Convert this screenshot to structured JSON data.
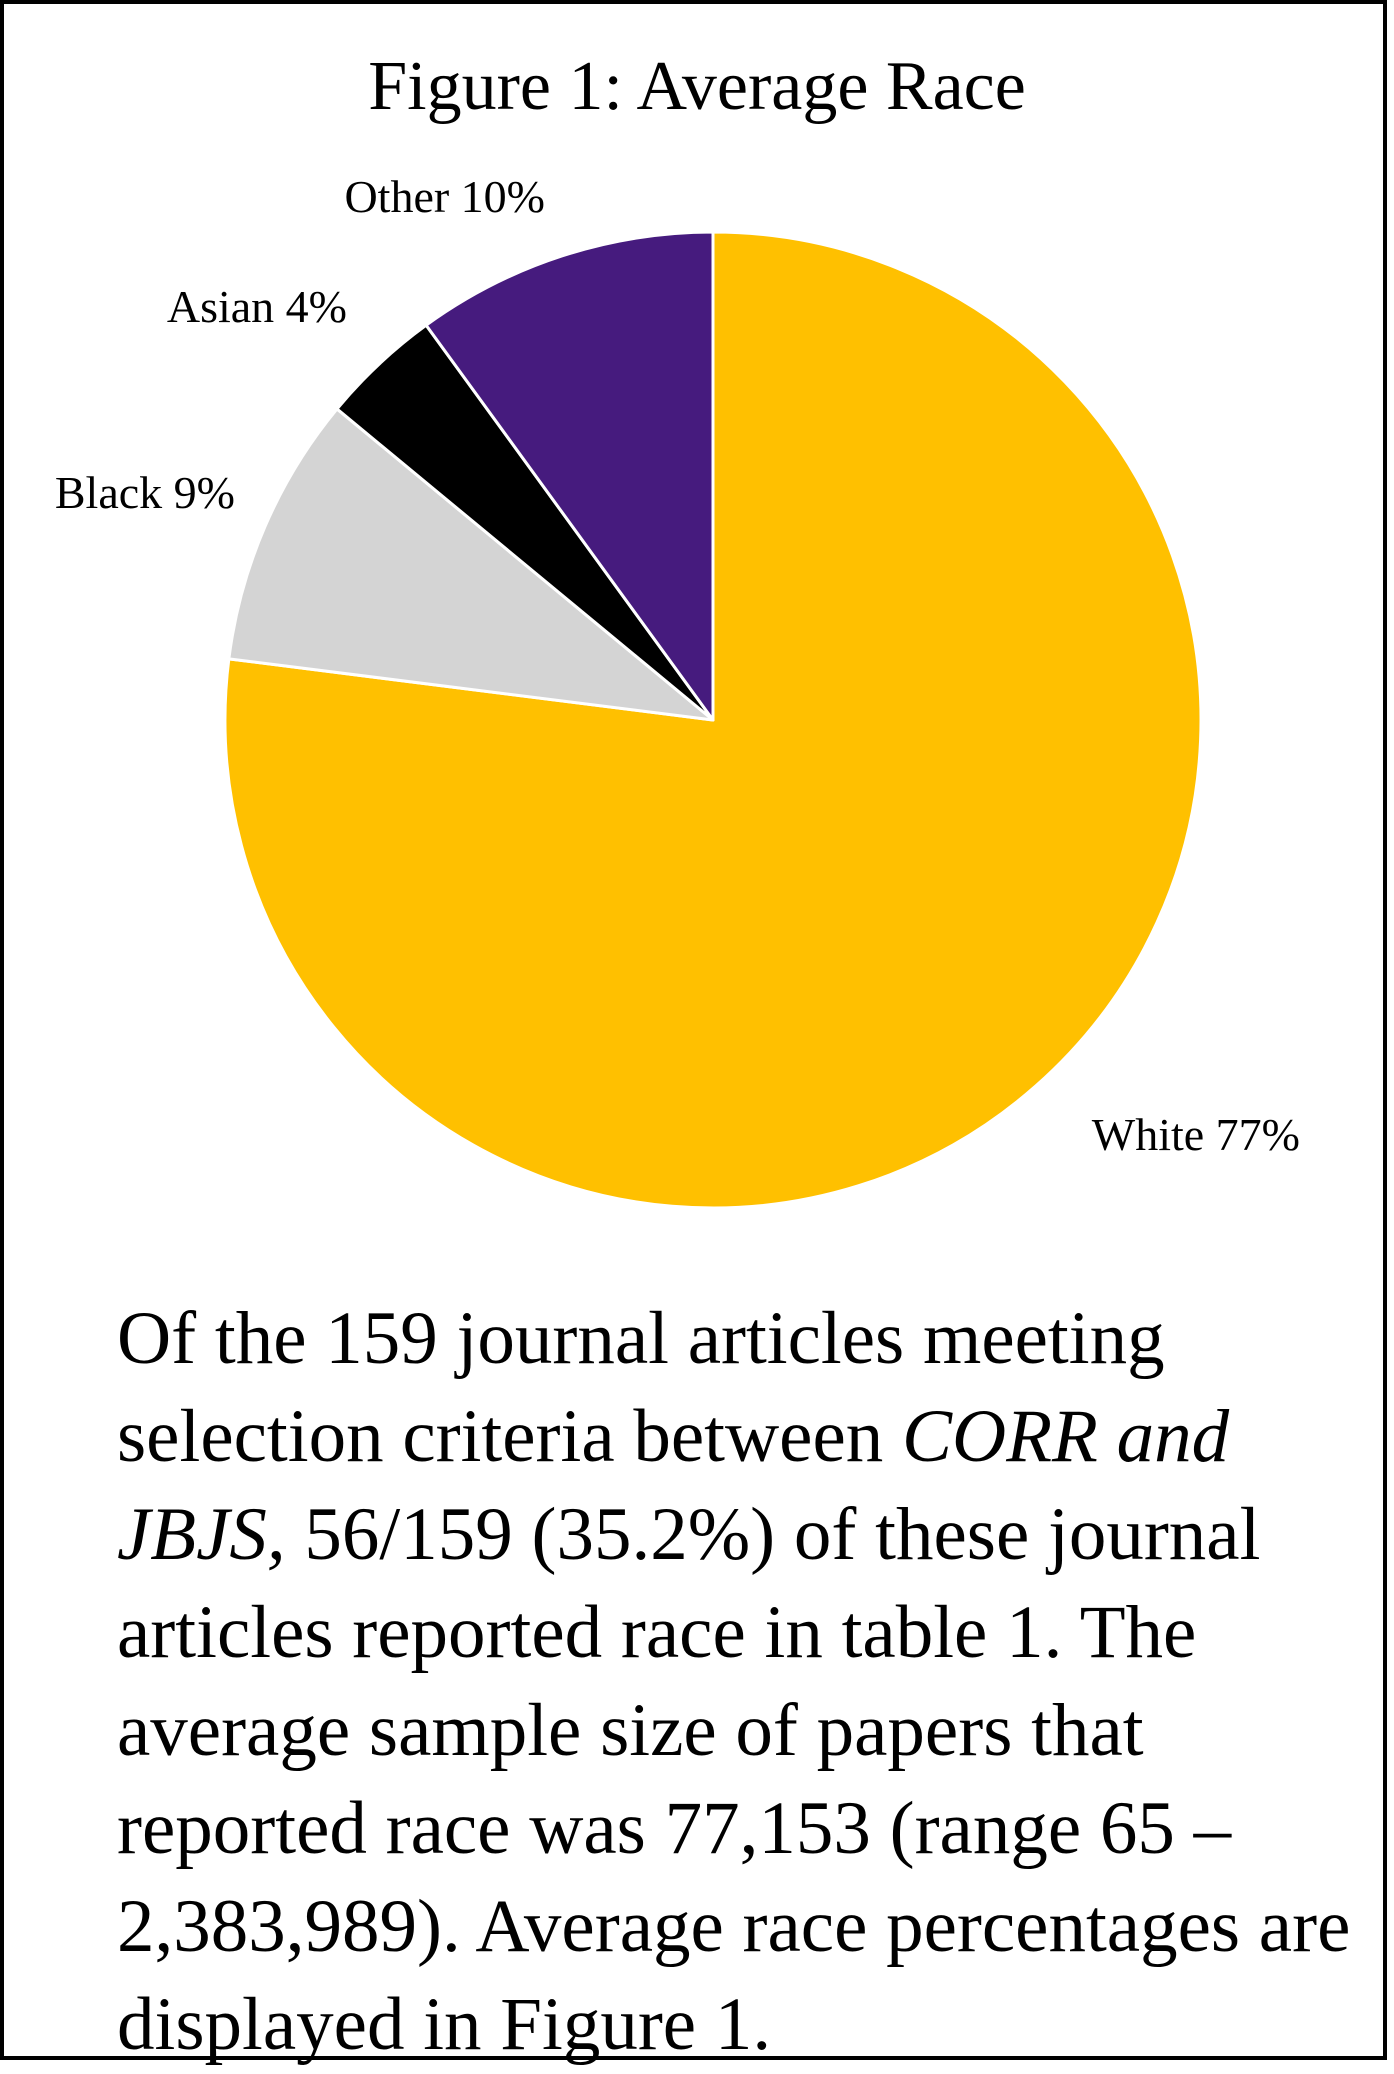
{
  "chart_data": {
    "type": "pie",
    "title": "Figure 1: Average Race",
    "legend": "none",
    "slices": [
      {
        "label": "White",
        "value": 77,
        "value_text": "77%",
        "color": "#FFC000"
      },
      {
        "label": "Black",
        "value": 9,
        "value_text": "9%",
        "color": "#D4D4D4"
      },
      {
        "label": "Asian",
        "value": 4,
        "value_text": "4%",
        "color": "#000000"
      },
      {
        "label": "Other",
        "value": 10,
        "value_text": "10%",
        "color": "#461B7E"
      }
    ],
    "slice_border_color": "#FFFFFF"
  },
  "caption": {
    "part1": "Of the 159 journal articles meeting selection criteria between ",
    "italic1": "CORR and JBJS,",
    "part2": " 56/159 (35.2%) of these journal articles reported race in table 1. The average sample size of papers that reported race was 77,153 (range 65 – 2,383,989). Average race percentages are displayed in Figure 1."
  }
}
